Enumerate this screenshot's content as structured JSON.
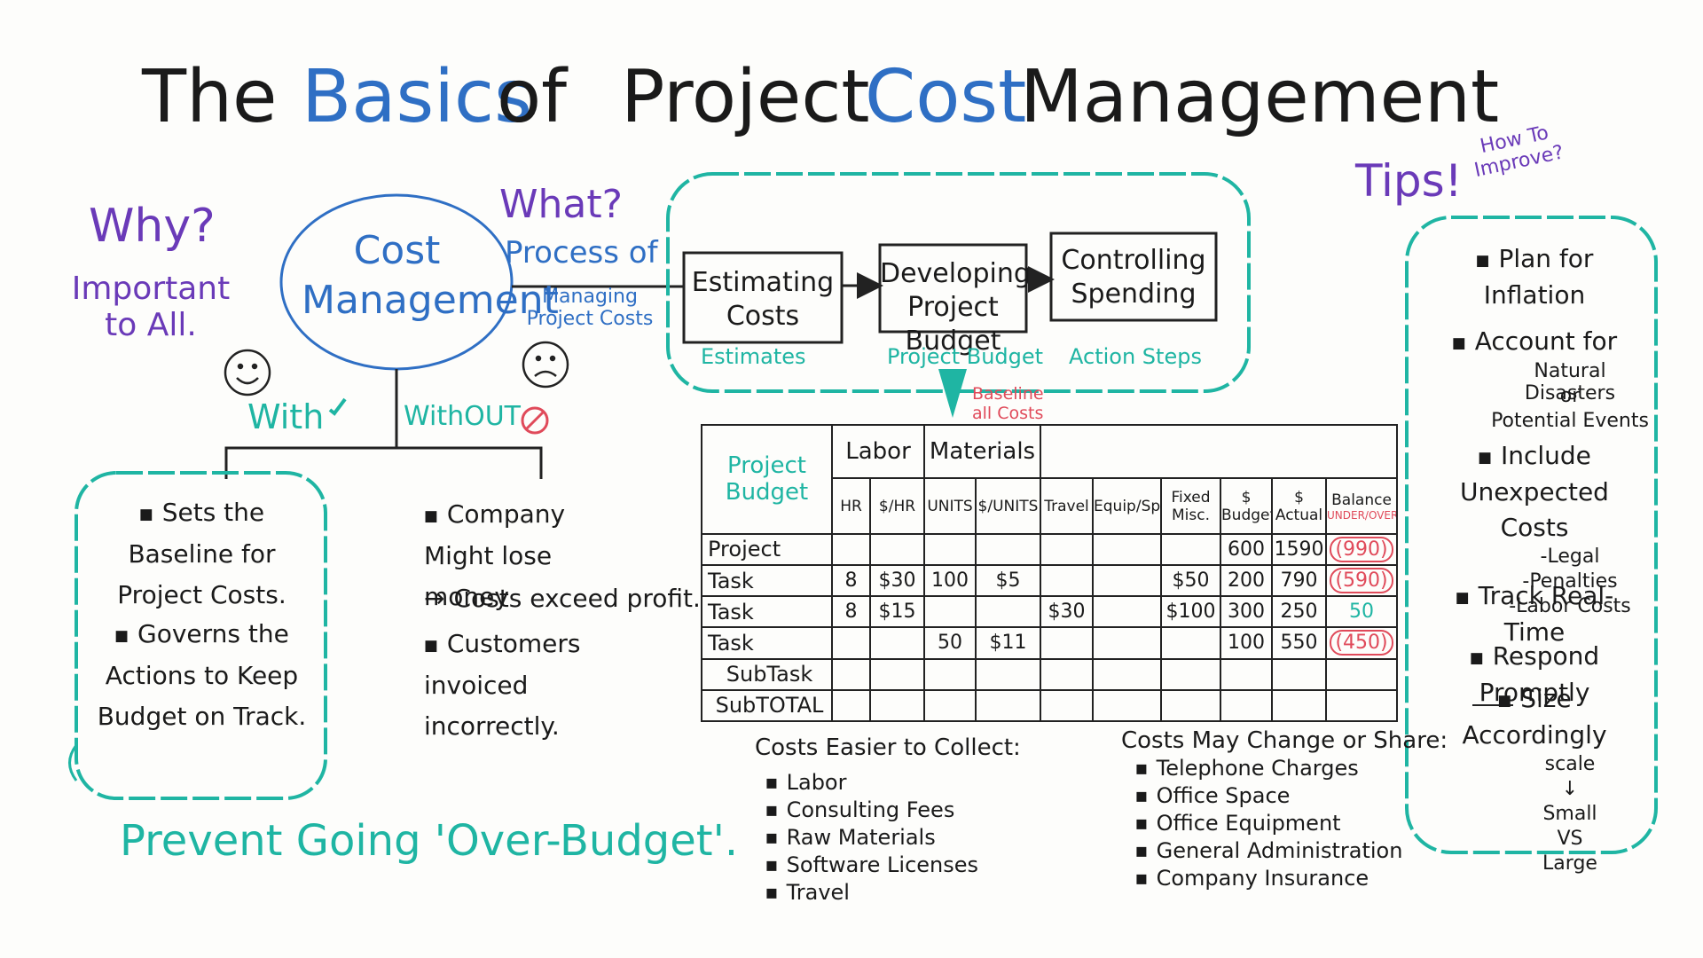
{
  "title": [
    "The",
    "Basics",
    "of",
    "Project",
    "Cost",
    "Management"
  ],
  "why": {
    "heading": "Why?",
    "text": "Important to All."
  },
  "center": "Cost Management",
  "with": {
    "label": "With",
    "items": [
      "Sets the Baseline for Project Costs.",
      "Governs the Actions to Keep Budget on Track."
    ]
  },
  "without": {
    "label": "WithOUT",
    "items": [
      "Company Might lose money",
      "Costs exceed profit.",
      "Customers invoiced incorrectly."
    ]
  },
  "prevent": "Prevent Going 'Over-Budget'.",
  "what": {
    "heading": "What?",
    "text": "Process of",
    "subtext": "Managing Project Costs"
  },
  "process": [
    {
      "label": "Estimating Costs",
      "output": "Estimates"
    },
    {
      "label": "Developing Project Budget",
      "output": "Project Budget"
    },
    {
      "label": "Controlling Spending",
      "output": "Action Steps"
    }
  ],
  "baseline": "Baseline all Costs",
  "table": {
    "corner": "Project Budget",
    "groups": [
      "Labor",
      "Materials"
    ],
    "columns": [
      "HR",
      "$/HR",
      "UNITS",
      "$/UNITS",
      "Travel",
      "Equip/Space",
      "Fixed Misc.",
      "$ Budget",
      "$ Actual",
      "Balance"
    ],
    "balance_note": "UNDER/OVER",
    "rows": [
      {
        "label": "Project",
        "cells": [
          null,
          null,
          null,
          null,
          null,
          null,
          null,
          "600",
          "1590",
          "(990)"
        ]
      },
      {
        "label": "Task",
        "cells": [
          "8",
          "$30",
          "100",
          "$5",
          null,
          null,
          "$50",
          "200",
          "790",
          "(590)"
        ]
      },
      {
        "label": "Task",
        "cells": [
          "8",
          "$15",
          null,
          null,
          "$30",
          null,
          "$100",
          "300",
          "250",
          "50"
        ]
      },
      {
        "label": "Task",
        "cells": [
          null,
          null,
          "50",
          "$11",
          null,
          null,
          null,
          "100",
          "550",
          "(450)"
        ]
      },
      {
        "label": "SubTask",
        "cells": [
          null,
          null,
          null,
          null,
          null,
          null,
          null,
          null,
          null,
          null
        ]
      },
      {
        "label": "SubTOTAL",
        "cells": [
          null,
          null,
          null,
          null,
          null,
          null,
          null,
          null,
          null,
          null
        ]
      }
    ]
  },
  "easier": {
    "heading": "Costs Easier to Collect:",
    "items": [
      "Labor",
      "Consulting Fees",
      "Raw Materials",
      "Software Licenses",
      "Travel"
    ]
  },
  "change": {
    "heading": "Costs May Change or Share:",
    "items": [
      "Telephone Charges",
      "Office Space",
      "Office Equipment",
      "General Administration",
      "Company Insurance"
    ]
  },
  "tips": {
    "heading": "Tips!",
    "subheading": "How To Improve?",
    "items": [
      {
        "text": "Plan for Inflation"
      },
      {
        "text": "Account for",
        "details": [
          "Natural Disasters",
          "or",
          "Potential Events"
        ]
      },
      {
        "text": "Include Unexpected Costs",
        "details": [
          "-Legal",
          "-Penalties",
          "-Labor Costs"
        ]
      },
      {
        "text": "Track Real-Time"
      },
      {
        "text": "Respond Promptly"
      },
      {
        "text": "Size Accordingly",
        "details": [
          "scale",
          "↓",
          "Small",
          "VS",
          "Large"
        ]
      }
    ]
  }
}
